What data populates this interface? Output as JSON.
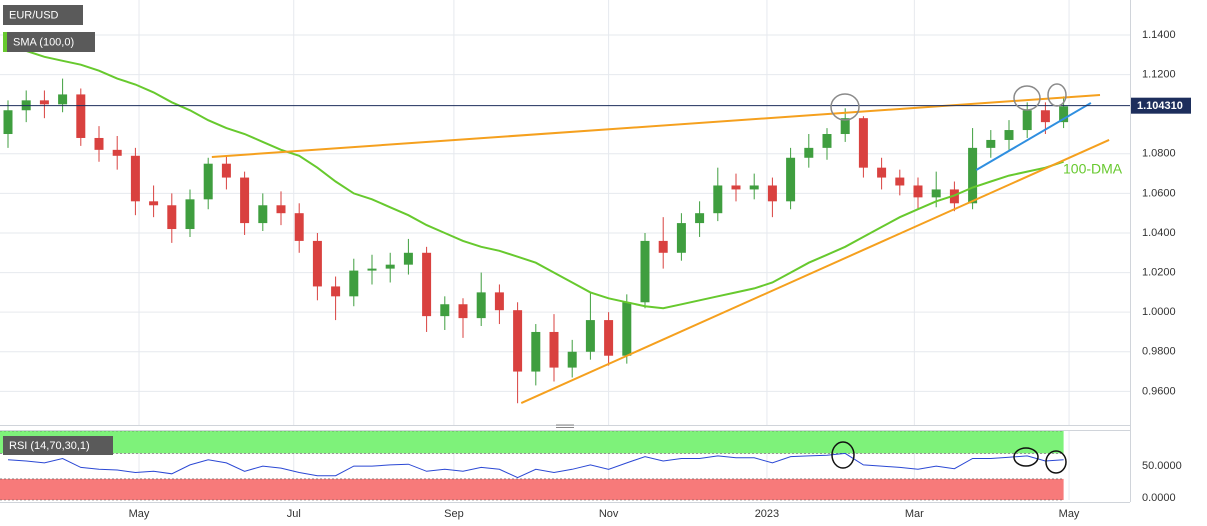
{
  "chart_data": [
    {
      "type": "candlestick",
      "title": "EUR/USD",
      "categories": [
        null,
        null,
        null,
        null,
        null,
        null,
        null,
        null,
        null,
        null,
        null,
        null,
        null,
        null,
        null,
        null,
        null,
        null,
        null,
        null,
        null,
        null,
        null,
        null,
        null,
        null,
        null,
        null,
        null,
        null,
        null,
        null,
        null,
        null,
        null,
        null,
        null,
        null,
        null,
        null,
        null,
        null,
        null,
        null,
        null,
        null,
        null,
        null,
        null,
        null,
        null,
        null,
        null,
        null,
        null,
        null,
        null,
        null,
        null
      ],
      "open": [
        1.09,
        1.102,
        1.107,
        1.105,
        1.11,
        1.088,
        1.082,
        1.079,
        1.056,
        1.054,
        1.042,
        1.057,
        1.075,
        1.068,
        1.045,
        1.054,
        1.05,
        1.036,
        1.013,
        1.008,
        1.021,
        1.022,
        1.024,
        1.03,
        0.998,
        1.004,
        0.997,
        1.01,
        1.001,
        0.97,
        0.99,
        0.972,
        0.98,
        0.996,
        0.978,
        1.005,
        1.036,
        1.03,
        1.045,
        1.05,
        1.064,
        1.062,
        1.064,
        1.056,
        1.078,
        1.083,
        1.09,
        1.098,
        1.073,
        1.068,
        1.064,
        1.058,
        1.062,
        1.055,
        1.083,
        1.087,
        1.092,
        1.102,
        1.096
      ],
      "high": [
        1.107,
        1.112,
        1.112,
        1.118,
        1.113,
        1.094,
        1.089,
        1.083,
        1.064,
        1.06,
        1.062,
        1.078,
        1.079,
        1.071,
        1.06,
        1.061,
        1.055,
        1.04,
        1.018,
        1.027,
        1.029,
        1.03,
        1.037,
        1.033,
        1.008,
        1.007,
        1.02,
        1.014,
        1.005,
        0.994,
        0.999,
        0.986,
        1.01,
        1.0,
        1.009,
        1.04,
        1.048,
        1.05,
        1.056,
        1.073,
        1.07,
        1.07,
        1.068,
        1.083,
        1.09,
        1.093,
        1.103,
        1.099,
        1.078,
        1.072,
        1.068,
        1.071,
        1.066,
        1.093,
        1.092,
        1.097,
        1.106,
        1.106,
        1.109
      ],
      "low": [
        1.083,
        1.096,
        1.098,
        1.101,
        1.084,
        1.076,
        1.072,
        1.049,
        1.048,
        1.035,
        1.038,
        1.052,
        1.062,
        1.039,
        1.041,
        1.044,
        1.03,
        1.006,
        0.996,
        1.003,
        1.014,
        1.015,
        1.019,
        0.99,
        0.991,
        0.987,
        0.993,
        0.994,
        0.954,
        0.963,
        0.965,
        0.967,
        0.976,
        0.973,
        0.974,
        1.002,
        1.022,
        1.026,
        1.038,
        1.046,
        1.056,
        1.057,
        1.048,
        1.052,
        1.073,
        1.077,
        1.086,
        1.068,
        1.062,
        1.059,
        1.052,
        1.053,
        1.051,
        1.052,
        1.078,
        1.082,
        1.088,
        1.09,
        1.093
      ],
      "close": [
        1.102,
        1.107,
        1.105,
        1.11,
        1.088,
        1.082,
        1.079,
        1.056,
        1.054,
        1.042,
        1.057,
        1.075,
        1.068,
        1.045,
        1.054,
        1.05,
        1.036,
        1.013,
        1.008,
        1.021,
        1.022,
        1.024,
        1.03,
        0.998,
        1.004,
        0.997,
        1.01,
        1.001,
        0.97,
        0.99,
        0.972,
        0.98,
        0.996,
        0.978,
        1.005,
        1.036,
        1.03,
        1.045,
        1.05,
        1.064,
        1.062,
        1.064,
        1.056,
        1.078,
        1.083,
        1.09,
        1.098,
        1.073,
        1.068,
        1.064,
        1.058,
        1.062,
        1.055,
        1.083,
        1.087,
        1.092,
        1.102,
        1.096,
        1.104
      ],
      "up_color": "#3f9e3f",
      "down_color": "#d9413f",
      "series": [
        {
          "name": "SMA (100,0)",
          "color": "#67c92e",
          "values": [
            1.134,
            1.132,
            1.129,
            1.127,
            1.125,
            1.122,
            1.118,
            1.115,
            1.111,
            1.106,
            1.102,
            1.097,
            1.093,
            1.09,
            1.086,
            1.082,
            1.079,
            1.073,
            1.066,
            1.06,
            1.057,
            1.053,
            1.049,
            1.044,
            1.04,
            1.036,
            1.033,
            1.031,
            1.028,
            1.025,
            1.02,
            1.015,
            1.01,
            1.007,
            1.005,
            1.003,
            1.002,
            1.004,
            1.006,
            1.008,
            1.01,
            1.012,
            1.015,
            1.02,
            1.025,
            1.029,
            1.033,
            1.038,
            1.043,
            1.048,
            1.052,
            1.056,
            1.059,
            1.063,
            1.066,
            1.069,
            1.071,
            1.073,
            1.076
          ]
        }
      ],
      "trendlines": [
        {
          "color": "#f5a01e",
          "x": [
            11.2,
            60.0
          ],
          "y": [
            1.0784,
            1.1097
          ]
        },
        {
          "color": "#f5a01e",
          "x": [
            28.2,
            60.5
          ],
          "y": [
            0.9541,
            1.087
          ]
        },
        {
          "color": "#2f8fe0",
          "x": [
            53.2,
            59.5
          ],
          "y": [
            1.0718,
            1.1057
          ]
        }
      ],
      "annotation": "100-DMA",
      "last_price": {
        "value": 1.10431,
        "label": "1.104310",
        "color": "#1d2e5c"
      },
      "ylim": [
        0.943,
        1.1577
      ],
      "yticks": [
        {
          "value": 1.14,
          "label": "1.1400"
        },
        {
          "value": 1.12,
          "label": "1.1200"
        },
        {
          "value": 1.08,
          "label": "1.0800"
        },
        {
          "value": 1.06,
          "label": "1.0600"
        },
        {
          "value": 1.04,
          "label": "1.0400"
        },
        {
          "value": 1.02,
          "label": "1.0200"
        },
        {
          "value": 1.0,
          "label": "1.0000"
        },
        {
          "value": 0.98,
          "label": "0.9800"
        },
        {
          "value": 0.96,
          "label": "0.9600"
        }
      ],
      "xticks": [
        {
          "value": 7.2,
          "label": "May"
        },
        {
          "value": 15.7,
          "label": "Jul"
        },
        {
          "value": 24.5,
          "label": "Sep"
        },
        {
          "value": 33.0,
          "label": "Nov"
        },
        {
          "value": 41.7,
          "label": "2023"
        },
        {
          "value": 49.8,
          "label": "Mar"
        },
        {
          "value": 58.3,
          "label": "May"
        }
      ],
      "grid": true
    },
    {
      "type": "line",
      "title": "RSI (14,70,30,1)",
      "series": [
        {
          "color": "#2b48d4",
          "values": [
            60,
            58,
            55,
            62,
            48,
            45,
            44,
            40,
            42,
            38,
            52,
            60,
            55,
            42,
            50,
            47,
            40,
            35,
            35,
            50,
            50,
            52,
            53,
            42,
            45,
            42,
            48,
            45,
            32,
            45,
            40,
            45,
            52,
            45,
            55,
            65,
            58,
            62,
            62,
            66,
            63,
            63,
            55,
            65,
            66,
            67,
            70,
            52,
            50,
            48,
            45,
            50,
            46,
            62,
            62,
            64,
            66,
            58,
            60
          ]
        }
      ],
      "bands": [
        {
          "range": [
            70,
            105
          ],
          "color": "#7ef27a"
        },
        {
          "range": [
            -3,
            30
          ],
          "color": "#f77a7a"
        }
      ],
      "ylim": [
        -3,
        105
      ],
      "yticks": [
        {
          "value": 50,
          "label": "50.0000"
        },
        {
          "value": 0,
          "label": "0.0000"
        }
      ]
    }
  ]
}
